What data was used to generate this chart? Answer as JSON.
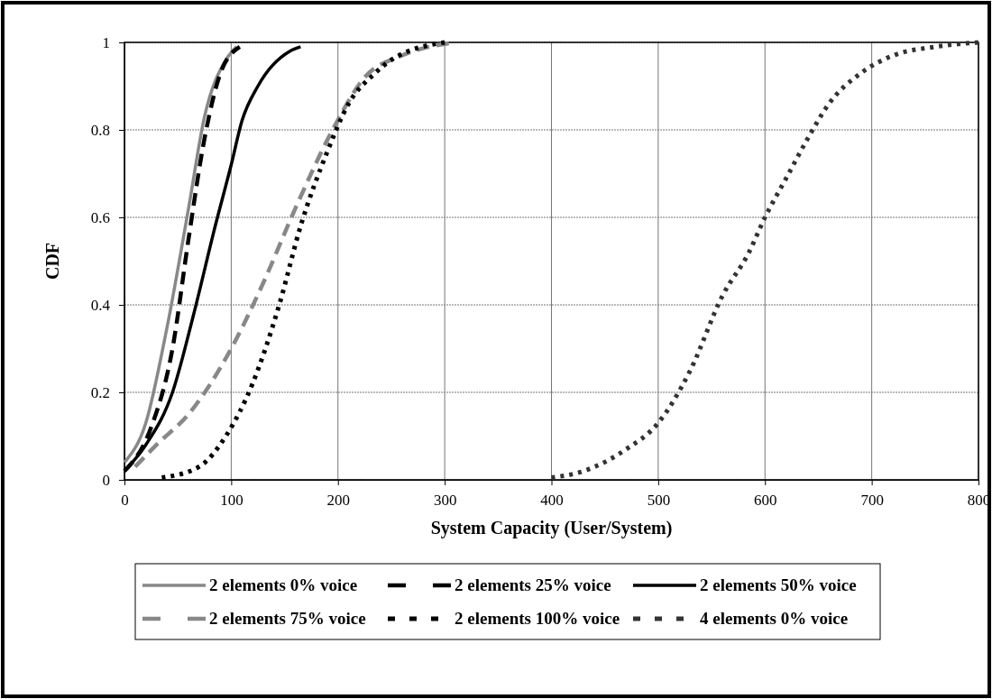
{
  "chart_data": {
    "type": "line",
    "xlabel": "System Capacity (User/System)",
    "ylabel": "CDF",
    "xlim": [
      0,
      800
    ],
    "xticks": [
      0,
      100,
      200,
      300,
      400,
      500,
      600,
      700,
      800
    ],
    "ylim": [
      0,
      1
    ],
    "yticks": [
      0,
      0.2,
      0.4,
      0.6,
      0.8,
      1
    ],
    "grid": true,
    "legend": "bottom",
    "marker": "none",
    "series": [
      {
        "name": "2 elements 0% voice",
        "color": "#888888",
        "line_style": "solid",
        "x": [
          0,
          20,
          40,
          60,
          75,
          95,
          105
        ],
        "values": [
          0.04,
          0.13,
          0.35,
          0.62,
          0.83,
          0.96,
          0.99
        ]
      },
      {
        "name": "2 elements 25% voice",
        "color": "#000000",
        "line_style": "dashed",
        "x": [
          0,
          25,
          45,
          60,
          75,
          90,
          108
        ],
        "values": [
          0.02,
          0.12,
          0.3,
          0.55,
          0.78,
          0.93,
          0.99
        ]
      },
      {
        "name": "2 elements 50% voice",
        "color": "#000000",
        "line_style": "solid",
        "x": [
          0,
          20,
          45,
          65,
          85,
          100,
          110,
          125,
          155,
          165
        ],
        "values": [
          0.02,
          0.08,
          0.2,
          0.38,
          0.58,
          0.72,
          0.82,
          0.9,
          0.98,
          0.99
        ]
      },
      {
        "name": "2 elements 75% voice",
        "color": "#888888",
        "line_style": "dashed",
        "x": [
          10,
          30,
          60,
          100,
          130,
          160,
          195,
          225,
          260,
          310
        ],
        "values": [
          0.03,
          0.08,
          0.15,
          0.3,
          0.45,
          0.62,
          0.8,
          0.92,
          0.97,
          1.0
        ]
      },
      {
        "name": "2 elements 100% voice",
        "color": "#000000",
        "line_style": "dotted",
        "x": [
          35,
          70,
          95,
          120,
          145,
          165,
          190,
          210,
          235,
          250,
          300
        ],
        "values": [
          0.005,
          0.03,
          0.1,
          0.22,
          0.4,
          0.58,
          0.75,
          0.86,
          0.93,
          0.96,
          1.0
        ]
      },
      {
        "name": "4 elements 0% voice",
        "color": "#333333",
        "line_style": "dotted",
        "x": [
          400,
          430,
          470,
          500,
          530,
          560,
          585,
          600,
          620,
          640,
          660,
          690,
          720,
          760,
          800
        ],
        "values": [
          0.005,
          0.02,
          0.07,
          0.13,
          0.25,
          0.42,
          0.52,
          0.6,
          0.69,
          0.78,
          0.86,
          0.93,
          0.97,
          0.99,
          1.0
        ]
      }
    ]
  }
}
